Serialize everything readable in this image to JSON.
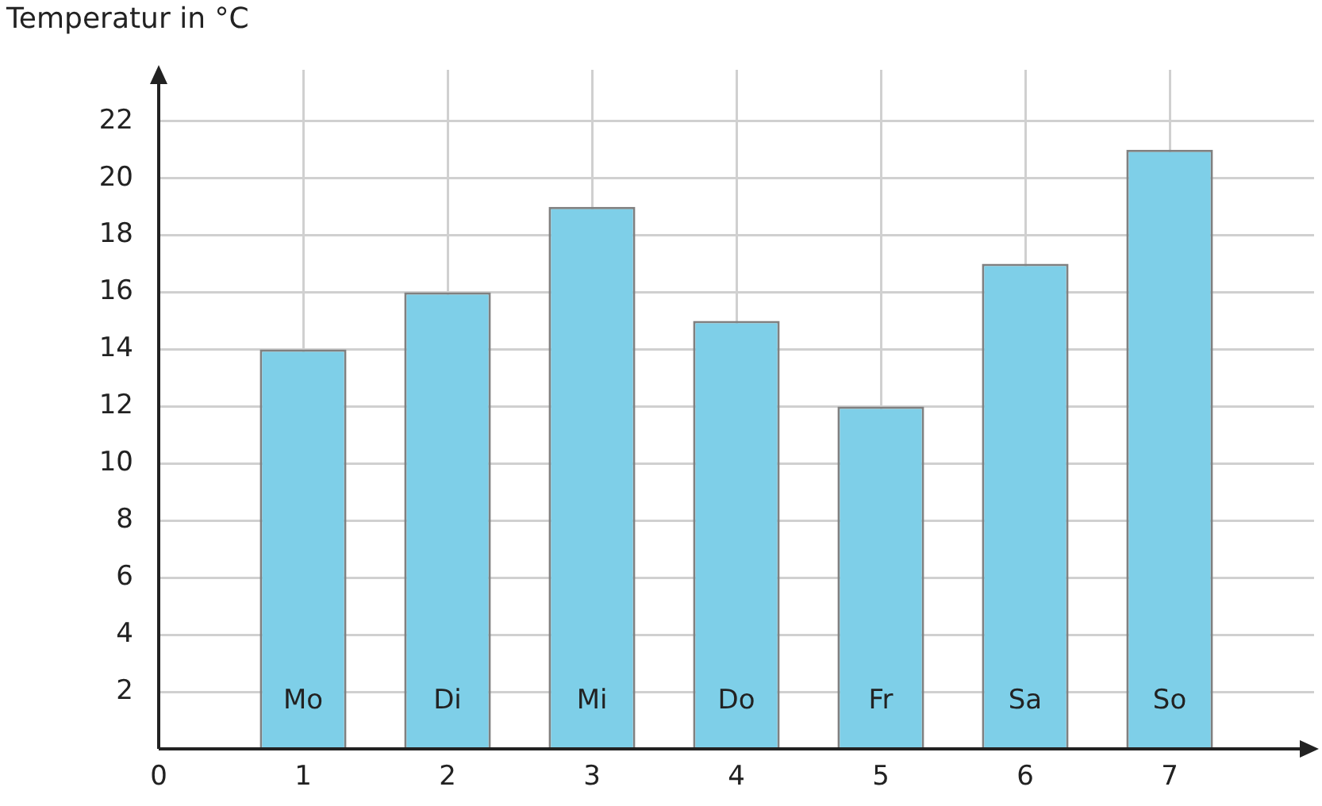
{
  "chart_data": {
    "type": "bar",
    "ylabel": "Temperatur in °C",
    "x": [
      1,
      2,
      3,
      4,
      5,
      6,
      7
    ],
    "values": [
      14,
      16,
      19,
      15,
      12,
      17,
      21
    ],
    "color": "#7ecfe8",
    "xlim": [
      0,
      8
    ],
    "xticks": [
      0,
      1,
      2,
      3,
      4,
      5,
      6,
      7
    ],
    "ylim": [
      0,
      23.8
    ],
    "yticks": [
      {
        "value": 0,
        "label": null
      },
      2,
      4,
      6,
      8,
      10,
      12,
      14,
      16,
      18,
      20,
      22
    ],
    "grid": true,
    "annotations": [
      "Mo",
      "Di",
      "Mi",
      "Do",
      "Fr",
      "Sa",
      "So"
    ]
  }
}
